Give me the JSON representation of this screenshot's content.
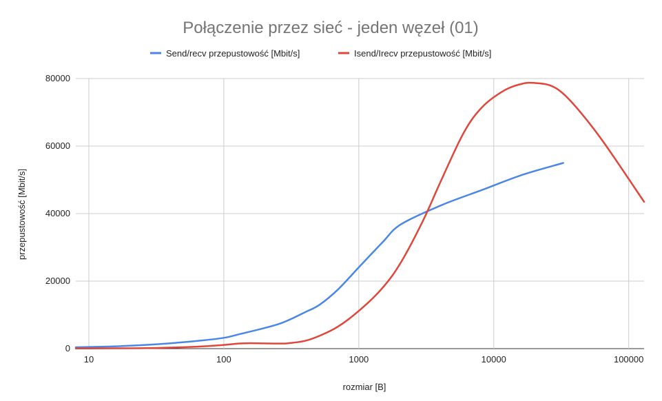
{
  "chart_data": {
    "type": "line",
    "title": "Połączenie przez sieć - jeden węzeł (01)",
    "xlabel": "rozmiar [B]",
    "ylabel": "przepustowość [Mbit/s]",
    "xscale": "log",
    "xlim": [
      8,
      130000
    ],
    "ylim": [
      0,
      80000
    ],
    "xticks": [
      10,
      100,
      1000,
      10000,
      100000
    ],
    "xtick_labels": [
      "10",
      "100",
      "1000",
      "10000",
      "100000"
    ],
    "yticks": [
      0,
      20000,
      40000,
      60000,
      80000
    ],
    "ytick_labels": [
      "0",
      "20000",
      "40000",
      "60000",
      "80000"
    ],
    "legend_position": "top",
    "series": [
      {
        "name": "Send/recv przepustowość [Mbit/s]",
        "color": "#4a86e8",
        "x": [
          8,
          16,
          32,
          64,
          100,
          128,
          256,
          400,
          512,
          700,
          1024,
          1500,
          2048,
          4096,
          8192,
          16384,
          32768
        ],
        "y": [
          400,
          700,
          1300,
          2300,
          3200,
          4200,
          7300,
          10800,
          13000,
          17500,
          24500,
          31500,
          36800,
          42500,
          47000,
          51500,
          55000
        ]
      },
      {
        "name": "Isend/Irecv przepustowość [Mbit/s]",
        "color": "#e0463a",
        "x": [
          8,
          16,
          32,
          64,
          100,
          128,
          150,
          200,
          256,
          300,
          400,
          512,
          700,
          1024,
          1500,
          2048,
          3000,
          4096,
          6000,
          8192,
          12000,
          16384,
          20000,
          26000,
          32768,
          45000,
          65536,
          131072
        ],
        "y": [
          50,
          100,
          200,
          600,
          1100,
          1500,
          1600,
          1550,
          1500,
          1600,
          2300,
          3800,
          6500,
          11500,
          18000,
          25500,
          38000,
          50000,
          64000,
          71500,
          76500,
          78500,
          78700,
          78000,
          75500,
          69500,
          61000,
          43500
        ]
      }
    ]
  }
}
